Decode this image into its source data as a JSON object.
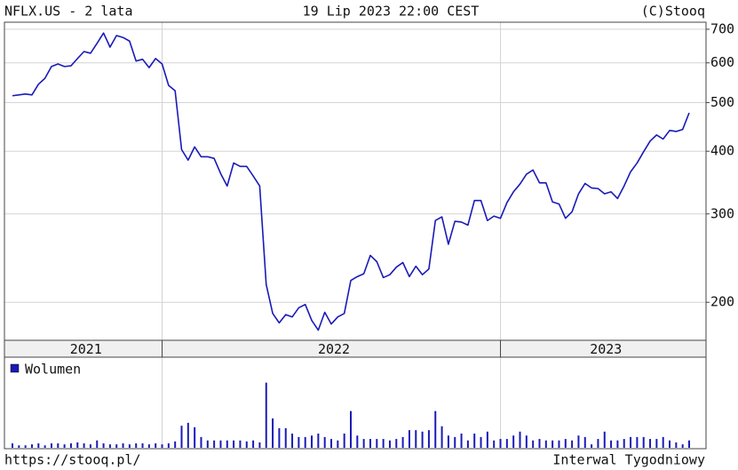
{
  "chart_data": {
    "type": "line",
    "title": "NFLX.US - 2 lata",
    "date": "19 Lip 2023 22:00 CEST",
    "source": "(C)Stooq",
    "footer_left": "https://stooq.pl/",
    "footer_right": "Interwal Tygodniowy",
    "log_scale": true,
    "grid": true,
    "color": "#1a1ab8",
    "ylim": [
      168,
      723
    ],
    "yticks": [
      200,
      300,
      400,
      500,
      600,
      700
    ],
    "years": [
      "2021",
      "2022",
      "2023"
    ],
    "year_boundaries": [
      23,
      75
    ],
    "categories": [
      null,
      null,
      null,
      null,
      null,
      null,
      null,
      null,
      null,
      null,
      null,
      null,
      null,
      null,
      null,
      null,
      null,
      null,
      null,
      null,
      null,
      null,
      null,
      null,
      null,
      null,
      null,
      null,
      null,
      null,
      null,
      null,
      null,
      null,
      null,
      null,
      null,
      null,
      null,
      null,
      null,
      null,
      null,
      null,
      null,
      null,
      null,
      null,
      null,
      null,
      null,
      null,
      null,
      null,
      null,
      null,
      null,
      null,
      null,
      null,
      null,
      null,
      null,
      null,
      null,
      null,
      null,
      null,
      null,
      null,
      null,
      null,
      null,
      null,
      null,
      null,
      null,
      null,
      null,
      null,
      null,
      null,
      null,
      null,
      null,
      null,
      null,
      null,
      null,
      null,
      null,
      null,
      null,
      null,
      null,
      null,
      null,
      null,
      null,
      null,
      null,
      null,
      null,
      null,
      null
    ],
    "values": [
      516,
      518,
      520,
      518,
      544,
      559,
      590,
      597,
      590,
      592,
      612,
      632,
      627,
      656,
      688,
      645,
      680,
      674,
      663,
      605,
      610,
      587,
      612,
      597,
      541,
      528,
      403,
      384,
      408,
      390,
      390,
      387,
      361,
      341,
      379,
      373,
      373,
      357,
      341,
      217,
      190,
      182,
      189,
      187,
      195,
      198,
      184,
      176,
      191,
      181,
      187,
      190,
      221,
      225,
      228,
      248,
      241,
      224,
      227,
      235,
      240,
      225,
      236,
      227,
      233,
      291,
      296,
      261,
      290,
      289,
      285,
      319,
      319,
      291,
      297,
      294,
      316,
      332,
      344,
      360,
      367,
      346,
      346,
      317,
      314,
      294,
      303,
      329,
      345,
      338,
      337,
      329,
      332,
      322,
      341,
      364,
      379,
      399,
      419,
      431,
      423,
      440,
      438,
      442,
      477
    ],
    "volume": {
      "name": "Wolumen",
      "color": "#1a1ab8",
      "ylim": [
        0,
        185
      ],
      "values": [
        9,
        5,
        5,
        7,
        9,
        5,
        9,
        9,
        7,
        9,
        11,
        9,
        7,
        15,
        9,
        7,
        7,
        9,
        7,
        9,
        9,
        7,
        9,
        7,
        9,
        13,
        45,
        51,
        42,
        22,
        15,
        15,
        15,
        15,
        15,
        15,
        13,
        15,
        11,
        133,
        60,
        40,
        40,
        29,
        22,
        22,
        25,
        29,
        22,
        18,
        15,
        29,
        75,
        25,
        18,
        18,
        18,
        18,
        15,
        18,
        22,
        36,
        36,
        33,
        36,
        75,
        44,
        25,
        22,
        29,
        15,
        29,
        22,
        33,
        15,
        18,
        18,
        25,
        33,
        25,
        15,
        18,
        15,
        15,
        15,
        18,
        15,
        25,
        22,
        7,
        18,
        33,
        15,
        15,
        18,
        22,
        22,
        22,
        18,
        18,
        22,
        15,
        11,
        7,
        15
      ]
    }
  }
}
